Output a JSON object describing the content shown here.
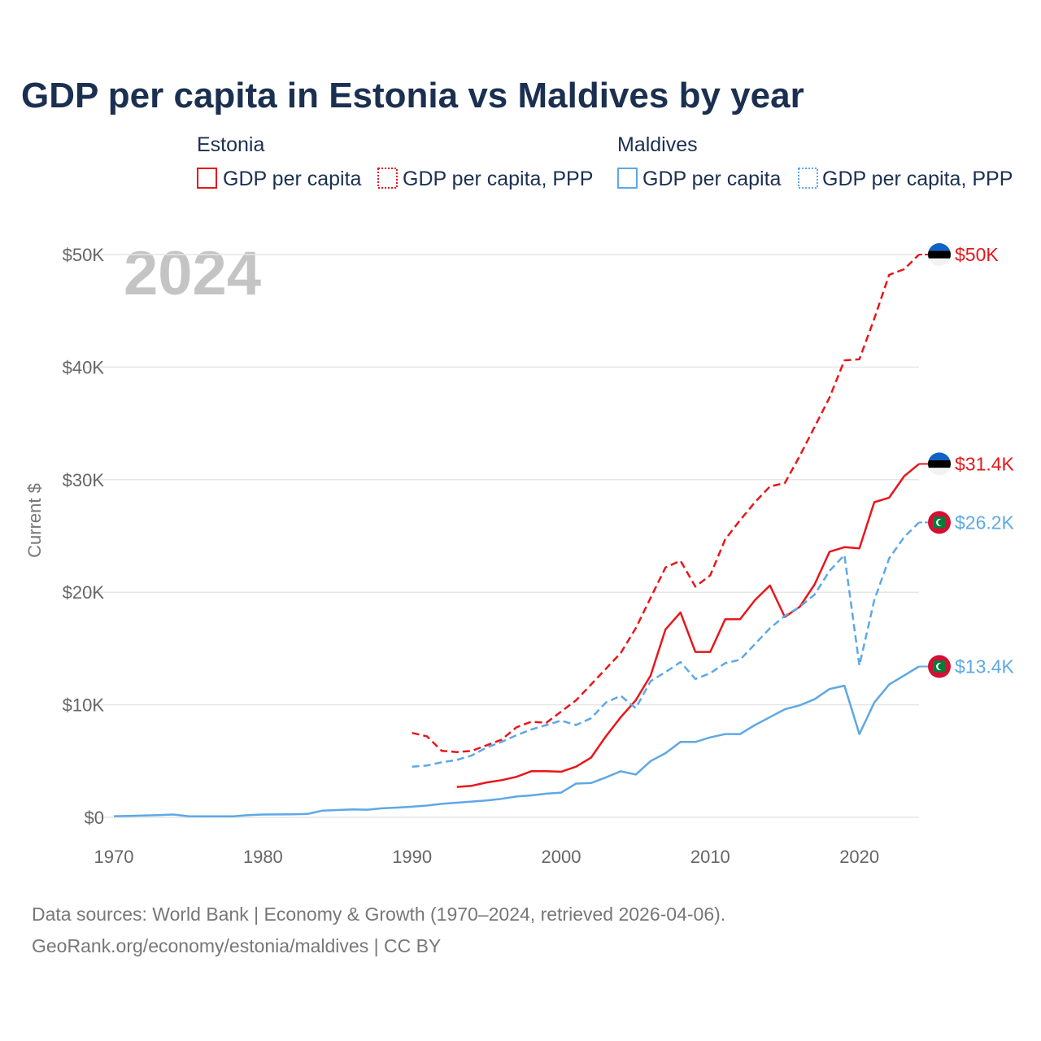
{
  "page": {
    "title": "GDP per capita in Estonia vs Maldives by year",
    "year_watermark": "2024",
    "source_line1": "Data sources: World Bank | Economy & Growth (1970–2024, retrieved 2026-04-06).",
    "source_line2": "GeoRank.org/economy/estonia/maldives | CC BY"
  },
  "legend": {
    "groups": [
      {
        "country": "Estonia",
        "items": [
          {
            "label": "GDP per capita",
            "style": "solid",
            "color": "#e8161b"
          },
          {
            "label": "GDP per capita, PPP",
            "style": "dotted",
            "color": "#e8161b"
          }
        ]
      },
      {
        "country": "Maldives",
        "items": [
          {
            "label": "GDP per capita",
            "style": "solid",
            "color": "#5ea8e6"
          },
          {
            "label": "GDP per capita, PPP",
            "style": "dotted",
            "color": "#5ea8e6"
          }
        ]
      }
    ]
  },
  "chart_data": {
    "type": "line",
    "title": "GDP per capita in Estonia vs Maldives by year",
    "xlabel": "",
    "ylabel": "Current $",
    "xlim": [
      1970,
      2024
    ],
    "ylim": [
      0,
      50000
    ],
    "x_ticks": [
      1970,
      1980,
      1990,
      2000,
      2010,
      2020
    ],
    "x_tick_labels": [
      "1970",
      "1980",
      "1990",
      "2000",
      "2010",
      "2020"
    ],
    "y_ticks": [
      0,
      10000,
      20000,
      30000,
      40000,
      50000
    ],
    "y_tick_labels": [
      "$0",
      "$10K",
      "$20K",
      "$30K",
      "$40K",
      "$50K"
    ],
    "grid": true,
    "series": [
      {
        "name": "Estonia GDP per capita, PPP",
        "country": "Estonia",
        "color": "#e8161b",
        "dash": "dashed",
        "end_label": "$50K",
        "flag": "estonia",
        "x": [
          1990,
          1991,
          1992,
          1993,
          1994,
          1995,
          1996,
          1997,
          1998,
          1999,
          2000,
          2001,
          2002,
          2003,
          2004,
          2005,
          2006,
          2007,
          2008,
          2009,
          2010,
          2011,
          2012,
          2013,
          2014,
          2015,
          2016,
          2017,
          2018,
          2019,
          2020,
          2021,
          2022,
          2023,
          2024
        ],
        "values": [
          7500,
          7200,
          5900,
          5800,
          5900,
          6400,
          6900,
          8000,
          8500,
          8400,
          9400,
          10400,
          11800,
          13200,
          14600,
          16800,
          19500,
          22200,
          22800,
          20500,
          21500,
          24700,
          26400,
          28000,
          29400,
          29700,
          32100,
          34700,
          37300,
          40600,
          40700,
          44300,
          48200,
          48700,
          50000
        ]
      },
      {
        "name": "Estonia GDP per capita",
        "country": "Estonia",
        "color": "#e8161b",
        "dash": "solid",
        "end_label": "$31.4K",
        "flag": "estonia",
        "x": [
          1993,
          1994,
          1995,
          1996,
          1997,
          1998,
          1999,
          2000,
          2001,
          2002,
          2003,
          2004,
          2005,
          2006,
          2007,
          2008,
          2009,
          2010,
          2011,
          2012,
          2013,
          2014,
          2015,
          2016,
          2017,
          2018,
          2019,
          2020,
          2021,
          2022,
          2023,
          2024
        ],
        "values": [
          2700,
          2800,
          3100,
          3300,
          3600,
          4100,
          4100,
          4050,
          4500,
          5300,
          7200,
          8900,
          10400,
          12600,
          16700,
          18200,
          14700,
          14700,
          17600,
          17600,
          19300,
          20600,
          17800,
          18700,
          20700,
          23600,
          24000,
          23900,
          28000,
          28400,
          30300,
          31400
        ]
      },
      {
        "name": "Maldives GDP per capita, PPP",
        "country": "Maldives",
        "color": "#5ea8e6",
        "dash": "dashed",
        "end_label": "$26.2K",
        "flag": "maldives",
        "x": [
          1990,
          1991,
          1992,
          1993,
          1994,
          1995,
          1996,
          1997,
          1998,
          1999,
          2000,
          2001,
          2002,
          2003,
          2004,
          2005,
          2006,
          2007,
          2008,
          2009,
          2010,
          2011,
          2012,
          2013,
          2014,
          2015,
          2016,
          2017,
          2018,
          2019,
          2020,
          2021,
          2022,
          2023,
          2024
        ],
        "values": [
          4500,
          4600,
          4900,
          5100,
          5500,
          6200,
          6700,
          7300,
          7800,
          8200,
          8600,
          8200,
          8800,
          10200,
          10800,
          9700,
          12100,
          12900,
          13800,
          12300,
          12800,
          13700,
          14000,
          15400,
          16800,
          17900,
          18700,
          19800,
          21900,
          23300,
          13500,
          19300,
          23000,
          24900,
          26200
        ]
      },
      {
        "name": "Maldives GDP per capita",
        "country": "Maldives",
        "color": "#5ea8e6",
        "dash": "solid",
        "end_label": "$13.4K",
        "flag": "maldives",
        "x": [
          1970,
          1971,
          1972,
          1973,
          1974,
          1975,
          1976,
          1977,
          1978,
          1979,
          1980,
          1981,
          1982,
          1983,
          1984,
          1985,
          1986,
          1987,
          1988,
          1989,
          1990,
          1991,
          1992,
          1993,
          1994,
          1995,
          1996,
          1997,
          1998,
          1999,
          2000,
          2001,
          2002,
          2003,
          2004,
          2005,
          2006,
          2007,
          2008,
          2009,
          2010,
          2011,
          2012,
          2013,
          2014,
          2015,
          2016,
          2017,
          2018,
          2019,
          2020,
          2021,
          2022,
          2023,
          2024
        ],
        "values": [
          100,
          120,
          160,
          200,
          250,
          100,
          90,
          90,
          90,
          200,
          250,
          260,
          270,
          300,
          600,
          650,
          700,
          680,
          800,
          870,
          950,
          1050,
          1200,
          1300,
          1400,
          1500,
          1650,
          1850,
          1950,
          2100,
          2200,
          3000,
          3050,
          3550,
          4100,
          3800,
          5000,
          5700,
          6700,
          6700,
          7100,
          7400,
          7400,
          8200,
          8900,
          9600,
          9950,
          10500,
          11400,
          11700,
          7400,
          10200,
          11800,
          12600,
          13400
        ]
      }
    ]
  }
}
